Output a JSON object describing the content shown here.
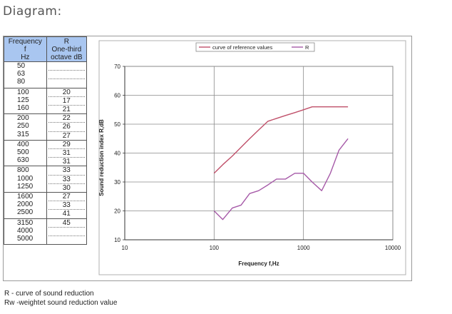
{
  "heading": "Diagram:",
  "table": {
    "header_col1": [
      "Frequency",
      "f",
      "Hz"
    ],
    "header_col2": [
      "R",
      "One-third",
      "octave dB"
    ],
    "groups": [
      {
        "freqs": [
          "50",
          "63",
          "80"
        ],
        "values": [
          "",
          "",
          ""
        ]
      },
      {
        "freqs": [
          "100",
          "125",
          "160"
        ],
        "values": [
          "20",
          "17",
          "21"
        ]
      },
      {
        "freqs": [
          "200",
          "250",
          "315"
        ],
        "values": [
          "22",
          "26",
          "27"
        ]
      },
      {
        "freqs": [
          "400",
          "500",
          "630"
        ],
        "values": [
          "29",
          "31",
          "31"
        ]
      },
      {
        "freqs": [
          "800",
          "1000",
          "1250"
        ],
        "values": [
          "33",
          "33",
          "30"
        ]
      },
      {
        "freqs": [
          "1600",
          "2000",
          "2500"
        ],
        "values": [
          "27",
          "33",
          "41"
        ]
      },
      {
        "freqs": [
          "3150",
          "4000",
          "5000"
        ],
        "values": [
          "45",
          "",
          ""
        ]
      }
    ]
  },
  "chart_data": {
    "type": "line",
    "title": "",
    "xlabel": "Frequency f,Hz",
    "ylabel": "Sound reduction index R,dB",
    "xscale": "log",
    "xlim": [
      10,
      10000
    ],
    "ylim": [
      10,
      70
    ],
    "xticks": [
      "10",
      "100",
      "1000",
      "10000"
    ],
    "yticks": [
      "10",
      "20",
      "30",
      "40",
      "50",
      "60",
      "70"
    ],
    "grid": true,
    "legend_position": "top-right",
    "series": [
      {
        "name": "curve of reference values",
        "color": "#c0506a",
        "x": [
          100,
          125,
          160,
          200,
          250,
          315,
          400,
          500,
          630,
          800,
          1000,
          1250,
          1600,
          2000,
          2500,
          3150
        ],
        "y": [
          33,
          36,
          39,
          42,
          45,
          48,
          51,
          52,
          53,
          54,
          55,
          56,
          56,
          56,
          56,
          56
        ]
      },
      {
        "name": "R",
        "color": "#a65aa8",
        "x": [
          100,
          125,
          160,
          200,
          250,
          315,
          400,
          500,
          630,
          800,
          1000,
          1250,
          1600,
          2000,
          2500,
          3150
        ],
        "y": [
          20,
          17,
          21,
          22,
          26,
          27,
          29,
          31,
          31,
          33,
          33,
          30,
          27,
          33,
          41,
          45
        ]
      }
    ]
  },
  "notes": [
    "R - curve of sound reduction",
    "Rw -weightet sound reduction value"
  ]
}
